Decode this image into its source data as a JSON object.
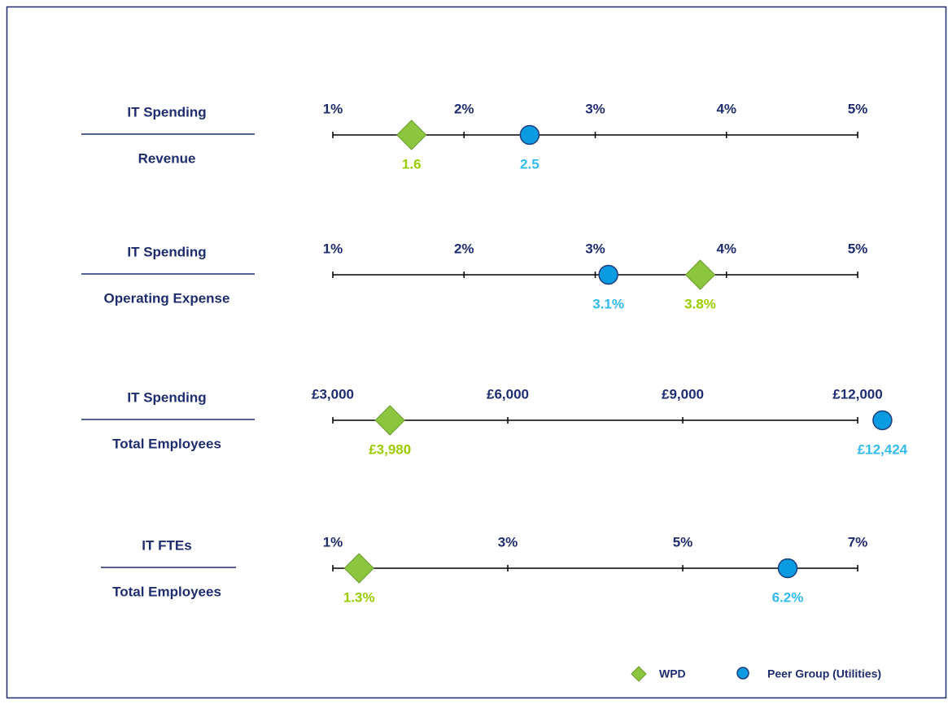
{
  "legend": [
    {
      "name": "WPD",
      "color": "#8cc63e",
      "marker": "diamond",
      "label_color": "#99cc00"
    },
    {
      "name": "Peer Group (Utilities)",
      "color": "#0a9be0",
      "marker": "circle",
      "label_color": "#33bbee"
    }
  ],
  "chart_data": [
    {
      "type": "dot",
      "numerator": "IT Spending",
      "denominator": "Revenue",
      "xlim": [
        1,
        5
      ],
      "xticks": [
        {
          "value": 1,
          "label": "1%"
        },
        {
          "value": 2,
          "label": "2%"
        },
        {
          "value": 3,
          "label": "3%"
        },
        {
          "value": 4,
          "label": "4%"
        },
        {
          "value": 5,
          "label": "5%"
        }
      ],
      "series": [
        {
          "values": [
            1.6
          ],
          "value_labels": [
            "1.6"
          ]
        },
        {
          "values": [
            2.5
          ],
          "value_labels": [
            "2.5"
          ]
        }
      ]
    },
    {
      "type": "dot",
      "numerator": "IT Spending",
      "denominator": "Operating Expense",
      "xlim": [
        1,
        5
      ],
      "xticks": [
        {
          "value": 1,
          "label": "1%"
        },
        {
          "value": 2,
          "label": "2%"
        },
        {
          "value": 3,
          "label": "3%"
        },
        {
          "value": 4,
          "label": "4%"
        },
        {
          "value": 5,
          "label": "5%"
        }
      ],
      "series": [
        {
          "values": [
            3.8
          ],
          "value_labels": [
            "3.8%"
          ]
        },
        {
          "values": [
            3.1
          ],
          "value_labels": [
            "3.1%"
          ]
        }
      ]
    },
    {
      "type": "dot",
      "numerator": "IT Spending",
      "denominator": "Total Employees",
      "xlim": [
        3000,
        12000
      ],
      "xticks": [
        {
          "value": 3000,
          "label": "£3,000"
        },
        {
          "value": 6000,
          "label": "£6,000"
        },
        {
          "value": 9000,
          "label": "£9,000"
        },
        {
          "value": 12000,
          "label": "£12,000"
        }
      ],
      "series": [
        {
          "values": [
            3980
          ],
          "value_labels": [
            "£3,980"
          ]
        },
        {
          "values": [
            12424
          ],
          "value_labels": [
            "£12,424"
          ]
        }
      ]
    },
    {
      "type": "dot",
      "numerator": "IT FTEs",
      "denominator": "Total Employees",
      "xlim": [
        1,
        7
      ],
      "xticks": [
        {
          "value": 1,
          "label": "1%"
        },
        {
          "value": 3,
          "label": "3%"
        },
        {
          "value": 5,
          "label": "5%"
        },
        {
          "value": 7,
          "label": "7%"
        }
      ],
      "series": [
        {
          "values": [
            1.3
          ],
          "value_labels": [
            "1.3%"
          ]
        },
        {
          "values": [
            6.2
          ],
          "value_labels": [
            "6.2%"
          ]
        }
      ]
    }
  ]
}
